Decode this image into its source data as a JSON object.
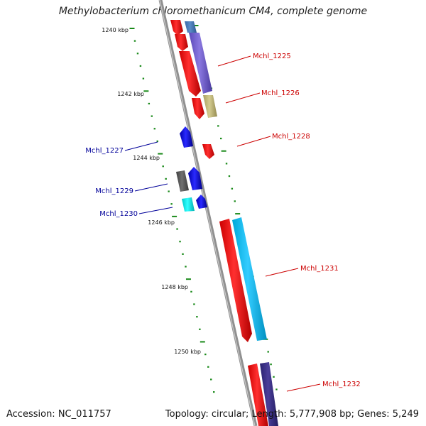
{
  "title": "Methylobacterium chloromethanicum CM4, complete genome",
  "footer": {
    "accession": "Accession: NC_011757",
    "summary": "Topology: circular; Length: 5,777,908 bp; Genes: 5,249"
  },
  "ticks": [
    "1240 kbp",
    "1242 kbp",
    "1244 kbp",
    "1246 kbp",
    "1248 kbp",
    "1250 kbp"
  ],
  "gene_labels": [
    {
      "text": "Mchl_1225",
      "color": "#cc0000"
    },
    {
      "text": "Mchl_1226",
      "color": "#cc0000"
    },
    {
      "text": "Mchl_1228",
      "color": "#cc0000"
    },
    {
      "text": "Mchl_1227",
      "color": "#000099"
    },
    {
      "text": "Mchl_1229",
      "color": "#000099"
    },
    {
      "text": "Mchl_1230",
      "color": "#000099"
    },
    {
      "text": "Mchl_1231",
      "color": "#cc0000"
    },
    {
      "text": "Mchl_1232",
      "color": "#cc0000"
    }
  ],
  "colors": {
    "cds": "#ff0000",
    "backbone": "#888888",
    "tick": "#1a8a1a",
    "forward_label": "#cc0000",
    "reverse_label": "#000099"
  }
}
